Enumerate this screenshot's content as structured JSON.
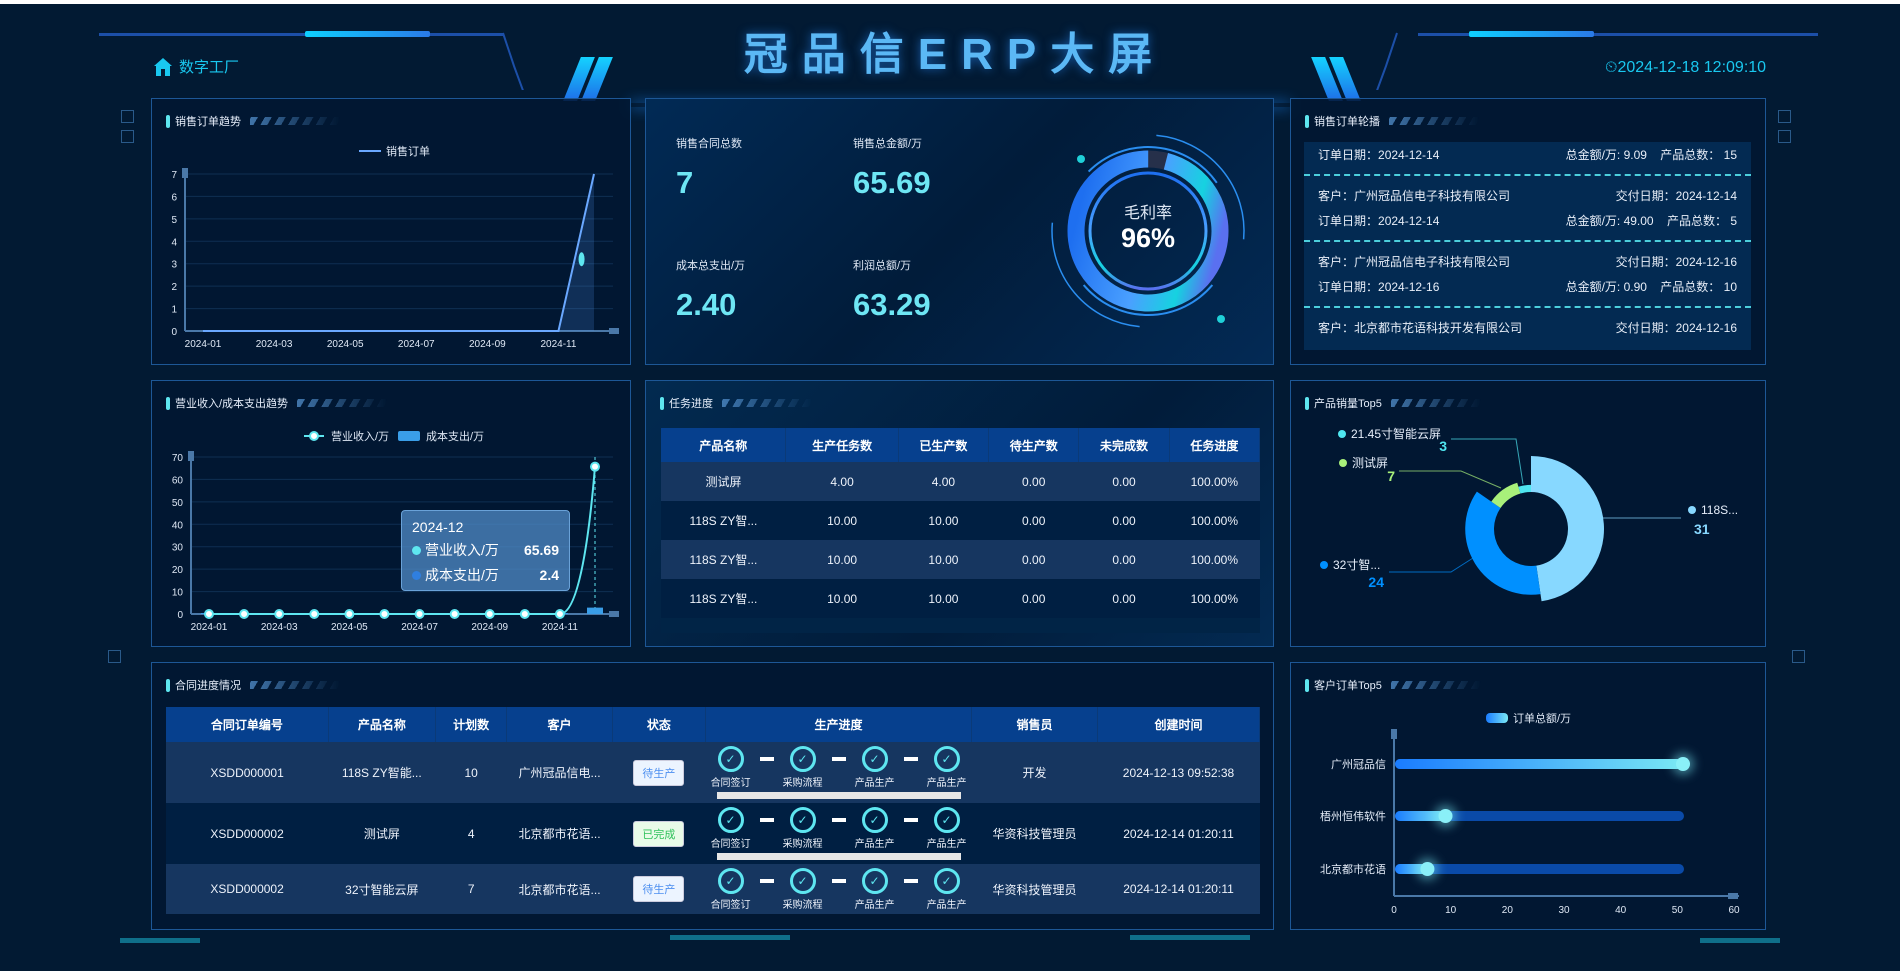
{
  "header": {
    "title": "冠品信ERP大屏",
    "home_label": "数字工厂",
    "datetime": "2024-12-18 12:09:10"
  },
  "colors": {
    "accent": "#5ee6f0",
    "title": "#5bb8f5",
    "header_bg": "#06408e",
    "panel_border": "#1d5796"
  },
  "panels": {
    "sales_trend": {
      "title": "销售订单趋势"
    },
    "kpi": {
      "contracts_label": "销售合同总数",
      "contracts_value": "7",
      "sales_label": "销售总金额/万",
      "sales_value": "65.69",
      "cost_label": "成本总支出/万",
      "cost_value": "2.40",
      "profit_label": "利润总额/万",
      "profit_value": "63.29",
      "gauge_label": "毛利率",
      "gauge_value": "96%",
      "gauge_percent": 96
    },
    "order_list": {
      "title": "销售订单轮播",
      "customer_label": "客户：",
      "delivery_label": "交付日期：",
      "order_date_label": "订单日期：",
      "amount_label": "总金额/万:",
      "count_label": "产品总数：",
      "items": [
        {
          "order_date": "2024-12-14",
          "amount": "9.09",
          "count": "15"
        },
        {
          "customer": "广州冠品信电子科技有限公司",
          "delivery": "2024-12-14",
          "order_date": "2024-12-14",
          "amount": "49.00",
          "count": "5"
        },
        {
          "customer": "广州冠品信电子科技有限公司",
          "delivery": "2024-12-16",
          "order_date": "2024-12-16",
          "amount": "0.90",
          "count": "10"
        },
        {
          "customer": "北京都市花语科技开发有限公司",
          "delivery": "2024-12-16"
        }
      ]
    },
    "revenue_cost": {
      "title": "营业收入/成本支出趋势",
      "tooltip": {
        "title": "2024-12",
        "revenue_label": "营业收入/万",
        "revenue_value": "65.69",
        "cost_label": "成本支出/万",
        "cost_value": "2.4"
      }
    },
    "tasks": {
      "title": "任务进度",
      "columns": [
        "产品名称",
        "生产任务数",
        "已生产数",
        "待生产数",
        "未完成数",
        "任务进度"
      ],
      "rows": [
        [
          "测试屏",
          "4.00",
          "4.00",
          "0.00",
          "0.00",
          "100.00%"
        ],
        [
          "118S ZY智...",
          "10.00",
          "10.00",
          "0.00",
          "0.00",
          "100.00%"
        ],
        [
          "118S ZY智...",
          "10.00",
          "10.00",
          "0.00",
          "0.00",
          "100.00%"
        ],
        [
          "118S ZY智...",
          "10.00",
          "10.00",
          "0.00",
          "0.00",
          "100.00%"
        ]
      ]
    },
    "product_top5": {
      "title": "产品销量Top5"
    },
    "contracts": {
      "title": "合同进度情况",
      "columns": [
        "合同订单编号",
        "产品名称",
        "计划数",
        "客户",
        "状态",
        "生产进度",
        "销售员",
        "创建时间"
      ],
      "steps": [
        "合同签订",
        "采购流程",
        "产品生产",
        "产品生产"
      ],
      "rows": [
        {
          "no": "XSDD000001",
          "product": "118S ZY智能...",
          "qty": "10",
          "customer": "广州冠品信电...",
          "status": "待生产",
          "status_color": "#4d8ff0",
          "bar": true,
          "sales": "开发",
          "created": "2024-12-13 09:52:38"
        },
        {
          "no": "XSDD000002",
          "product": "测试屏",
          "qty": "4",
          "customer": "北京都市花语...",
          "status": "已完成",
          "status_color": "#2fc25b",
          "bar": true,
          "sales": "华资科技管理员",
          "created": "2024-12-14 01:20:11"
        },
        {
          "no": "XSDD000002",
          "product": "32寸智能云屏",
          "qty": "7",
          "customer": "北京都市花语...",
          "status": "待生产",
          "status_color": "#4d8ff0",
          "bar": false,
          "sales": "华资科技管理员",
          "created": "2024-12-14 01:20:11"
        }
      ]
    },
    "customer_top5": {
      "title": "客户订单Top5"
    }
  },
  "chart_data": [
    {
      "type": "line",
      "id": "sales_trend",
      "legend": [
        "销售订单"
      ],
      "categories": [
        "2024-01",
        "2024-02",
        "2024-03",
        "2024-04",
        "2024-05",
        "2024-06",
        "2024-07",
        "2024-08",
        "2024-09",
        "2024-10",
        "2024-11",
        "2024-12"
      ],
      "tick_labels": [
        "2024-01",
        "2024-03",
        "2024-05",
        "2024-07",
        "2024-09",
        "2024-11"
      ],
      "series": [
        {
          "name": "销售订单",
          "values": [
            0,
            0,
            0,
            0,
            0,
            0,
            0,
            0,
            0,
            0,
            0,
            7
          ]
        }
      ],
      "ylim": [
        0,
        7
      ],
      "yticks": [
        0,
        1,
        2,
        3,
        4,
        5,
        6,
        7
      ],
      "grid": true,
      "legend_position": "top",
      "color": "#6aa8ff"
    },
    {
      "type": "line",
      "id": "revenue_cost",
      "categories": [
        "2024-01",
        "2024-02",
        "2024-03",
        "2024-04",
        "2024-05",
        "2024-06",
        "2024-07",
        "2024-08",
        "2024-09",
        "2024-10",
        "2024-11",
        "2024-12"
      ],
      "tick_labels": [
        "2024-01",
        "2024-03",
        "2024-05",
        "2024-07",
        "2024-09",
        "2024-11"
      ],
      "series": [
        {
          "name": "营业收入/万",
          "type": "line",
          "values": [
            0,
            0,
            0,
            0,
            0,
            0,
            0,
            0,
            0,
            0,
            0,
            65.69
          ],
          "color": "#5ee6f0"
        },
        {
          "name": "成本支出/万",
          "type": "bar",
          "values": [
            0,
            0,
            0,
            0,
            0,
            0,
            0,
            0,
            0,
            0,
            0,
            2.4
          ],
          "color": "#3a9ee8"
        }
      ],
      "ylim": [
        0,
        70
      ],
      "yticks": [
        0,
        10,
        20,
        30,
        40,
        50,
        60,
        70
      ],
      "grid": true,
      "legend_position": "top"
    },
    {
      "type": "pie",
      "id": "product_top5",
      "variant": "rose-donut",
      "slices": [
        {
          "name": "118S...",
          "value": 31,
          "color": "#87d8ff"
        },
        {
          "name": "32寸智...",
          "value": 24,
          "color": "#0090ff"
        },
        {
          "name": "测试屏",
          "value": 7,
          "color": "#a8f07a"
        },
        {
          "name": "21.45寸智能云屏",
          "value": 3,
          "color": "#4fe6f0"
        }
      ]
    },
    {
      "type": "bar",
      "id": "customer_top5",
      "orientation": "horizontal",
      "legend": [
        "订单总额/万"
      ],
      "categories": [
        "广州冠品信",
        "梧州恒伟软件",
        "北京都市花语"
      ],
      "values": [
        51,
        9.09,
        5.9
      ],
      "xlim": [
        0,
        60
      ],
      "xticks": [
        0,
        10,
        20,
        30,
        40,
        50,
        60
      ],
      "legend_position": "top"
    }
  ]
}
